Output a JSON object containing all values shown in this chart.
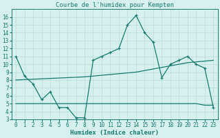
{
  "title": "Courbe de l'humidex pour Kempten",
  "xlabel": "Humidex (Indice chaleur)",
  "x": [
    0,
    1,
    2,
    3,
    4,
    5,
    6,
    7,
    8,
    9,
    10,
    11,
    12,
    13,
    14,
    15,
    16,
    17,
    18,
    19,
    20,
    21,
    22,
    23
  ],
  "line1": [
    11.0,
    8.5,
    7.5,
    5.5,
    6.5,
    4.5,
    4.5,
    3.2,
    3.2,
    10.5,
    11.0,
    11.5,
    12.0,
    15.0,
    16.2,
    14.0,
    12.8,
    8.3,
    10.0,
    10.5,
    11.0,
    10.0,
    9.5,
    4.5
  ],
  "line_trend1": [
    8.0,
    8.05,
    8.1,
    8.15,
    8.2,
    8.25,
    8.3,
    8.35,
    8.4,
    8.5,
    8.6,
    8.7,
    8.8,
    8.9,
    9.0,
    9.2,
    9.4,
    9.6,
    9.8,
    10.0,
    10.2,
    10.3,
    10.4,
    10.5
  ],
  "line_trend2": [
    5.0,
    5.0,
    5.0,
    5.0,
    5.0,
    5.0,
    5.0,
    5.0,
    5.0,
    5.0,
    5.0,
    5.0,
    5.0,
    5.0,
    5.0,
    5.0,
    5.0,
    5.0,
    5.0,
    5.0,
    5.0,
    5.0,
    4.8,
    4.8
  ],
  "color_main": "#1a7a6e",
  "bg_color": "#d6f0ee",
  "grid_color": "#b8ddd9",
  "ylim": [
    3,
    17
  ],
  "yticks": [
    3,
    4,
    5,
    6,
    7,
    8,
    9,
    10,
    11,
    12,
    13,
    14,
    15,
    16
  ],
  "xticks": [
    0,
    1,
    2,
    3,
    4,
    5,
    6,
    7,
    8,
    9,
    10,
    11,
    12,
    13,
    14,
    15,
    16,
    17,
    18,
    19,
    20,
    21,
    22,
    23
  ],
  "title_fontsize": 6.5,
  "label_fontsize": 6.5,
  "tick_fontsize": 5.5
}
